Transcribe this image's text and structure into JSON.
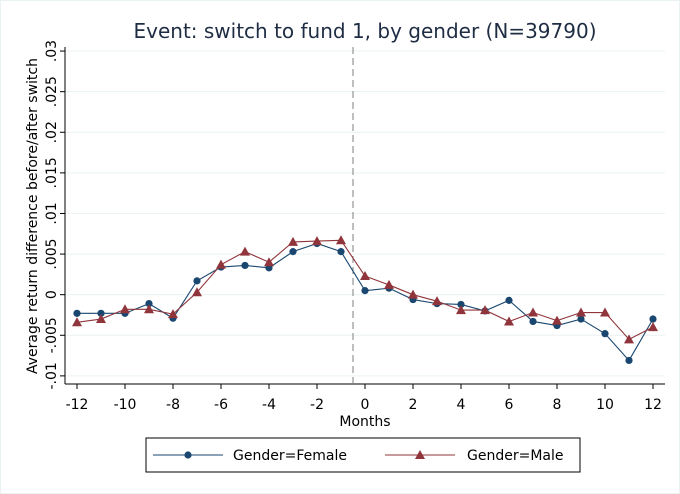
{
  "chart_data": {
    "type": "line",
    "title": "Event: switch to fund 1, by gender (N=39790)",
    "xlabel": "Months",
    "ylabel": "Average return difference before/after switch",
    "xlim": [
      -12.5,
      12.5
    ],
    "ylim": [
      -0.011,
      0.0305
    ],
    "xticks": [
      -12,
      -10,
      -8,
      -6,
      -4,
      -2,
      0,
      2,
      4,
      6,
      8,
      10,
      12
    ],
    "xtick_labels": [
      "-12",
      "-10",
      "-8",
      "-6",
      "-4",
      "-2",
      "0",
      "2",
      "4",
      "6",
      "8",
      "10",
      "12"
    ],
    "yticks": [
      -0.01,
      -0.005,
      0,
      0.005,
      0.01,
      0.015,
      0.02,
      0.025,
      0.03
    ],
    "ytick_labels": [
      "-.01",
      "-.005",
      "0",
      ".005",
      ".01",
      ".015",
      ".02",
      ".025",
      ".03"
    ],
    "event_line_x": -0.5,
    "grid": true,
    "legend_position": "bottom",
    "x": [
      -12,
      -11,
      -10,
      -9,
      -8,
      -7,
      -6,
      -5,
      -4,
      -3,
      -2,
      -1,
      0,
      1,
      2,
      3,
      4,
      5,
      6,
      7,
      8,
      9,
      10,
      11,
      12
    ],
    "series": [
      {
        "name": "Gender=Female",
        "color": "#1a476f",
        "marker": "circle",
        "values": [
          -0.0023,
          -0.0023,
          -0.0023,
          -0.0011,
          -0.0029,
          0.0017,
          0.0034,
          0.0036,
          0.0033,
          0.0053,
          0.0063,
          0.0053,
          0.0005,
          0.0008,
          -0.0006,
          -0.0011,
          -0.0012,
          -0.002,
          -0.0007,
          -0.0033,
          -0.0038,
          -0.003,
          -0.0048,
          -0.0081,
          -0.003
        ]
      },
      {
        "name": "Gender=Male",
        "color": "#90353b",
        "marker": "triangle",
        "values": [
          -0.0034,
          -0.003,
          -0.0018,
          -0.0018,
          -0.0024,
          0.0003,
          0.0037,
          0.0053,
          0.004,
          0.0065,
          0.0066,
          0.0067,
          0.0023,
          0.0012,
          0.0,
          -0.0008,
          -0.0019,
          -0.0019,
          -0.0033,
          -0.0022,
          -0.0032,
          -0.0022,
          -0.0022,
          -0.0055,
          -0.004
        ]
      }
    ]
  }
}
